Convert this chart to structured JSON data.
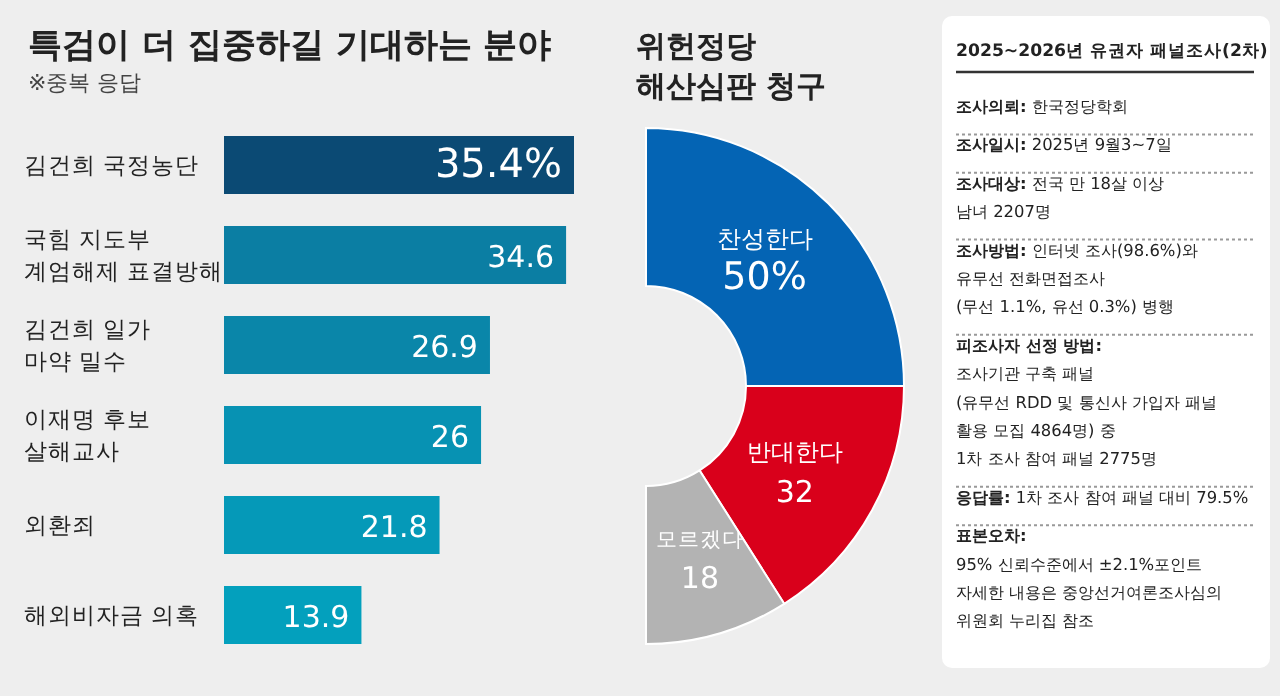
{
  "chart_data": [
    {
      "type": "bar",
      "orientation": "horizontal",
      "title": "특검이 더 집중하길 기대하는 분야",
      "subtitle": "※중복 응답",
      "categories": [
        "김건희 국정농단",
        "국힘 지도부\n계엄해제 표결방해",
        "김건희 일가\n마약 밀수",
        "이재명 후보\n살해교사",
        "외환죄",
        "해외비자금 의혹"
      ],
      "values": [
        35.4,
        34.6,
        26.9,
        26,
        21.8,
        13.9
      ],
      "colors": [
        "#0b4a74",
        "#0b7ea3",
        "#0a86a9",
        "#0792b3",
        "#0599b8",
        "#03a0bd"
      ],
      "value_labels": [
        "35.4%",
        "34.6",
        "26.9",
        "26",
        "21.8",
        "13.9"
      ]
    },
    {
      "type": "donut",
      "title": "위헌정당\n해산심판 청구",
      "categories": [
        "찬성한다",
        "반대한다",
        "모르겠다"
      ],
      "values": [
        50,
        32,
        18
      ],
      "colors": [
        "#0464b4",
        "#d9001b",
        "#b3b3b3"
      ],
      "value_labels": [
        "50%",
        "32",
        "18"
      ]
    },
    {
      "type": "other",
      "title": "2025~2026년 유권자 패널조사(2차)",
      "annotations": [
        "조사의뢰: 한국정당학회",
        "조사일시: 2025년 9월3~7일",
        "조사대상: 전국 만 18살 이상\n남녀 2207명",
        "조사방법: 인터넷 조사(98.6%)와\n유무선 전화면접조사\n(무선 1.1%, 유선 0.3%) 병행",
        "피조사자 선정 방법:\n조사기관 구축 패널\n(유무선 RDD 및 통신사 가입자 패널\n활용 모집 4864명) 중\n1차 조사 참여 패널 2775명",
        "응답률: 1차 조사 참여 패널 대비 79.5%",
        "표본오차:\n95% 신뢰수준에서 ±2.1%포인트\n자세한 내용은 중앙선거여론조사심의\n위원회 누리집 참조"
      ]
    }
  ]
}
